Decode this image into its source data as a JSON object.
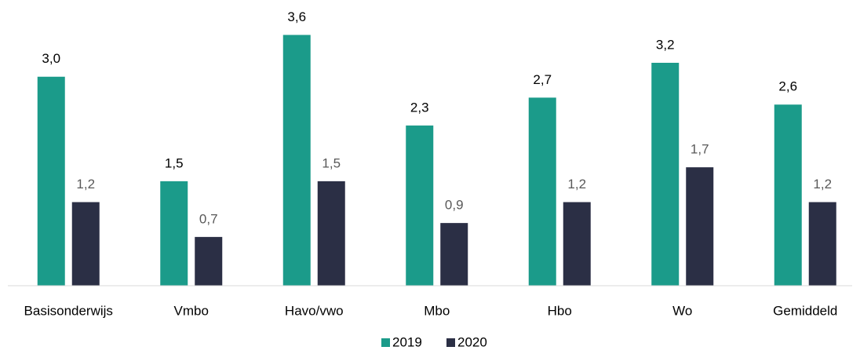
{
  "chart_data": {
    "type": "bar",
    "categories": [
      "Basisonderwijs",
      "Vmbo",
      "Havo/vwo",
      "Mbo",
      "Hbo",
      "Wo",
      "Gemiddeld"
    ],
    "series": [
      {
        "name": "2019",
        "color": "#1b9b8a",
        "values": [
          3.0,
          1.5,
          3.6,
          2.3,
          2.7,
          3.2,
          2.6
        ],
        "value_labels": [
          "3,0",
          "1,5",
          "3,6",
          "2,3",
          "2,7",
          "3,2",
          "2,6"
        ]
      },
      {
        "name": "2020",
        "color": "#2b2f45",
        "values": [
          1.2,
          0.7,
          1.5,
          0.9,
          1.2,
          1.7,
          1.2
        ],
        "value_labels": [
          "1,2",
          "0,7",
          "1,5",
          "0,9",
          "1,2",
          "1,7",
          "1,2"
        ]
      }
    ],
    "ylim": [
      0,
      4
    ],
    "legend": "bottom"
  }
}
